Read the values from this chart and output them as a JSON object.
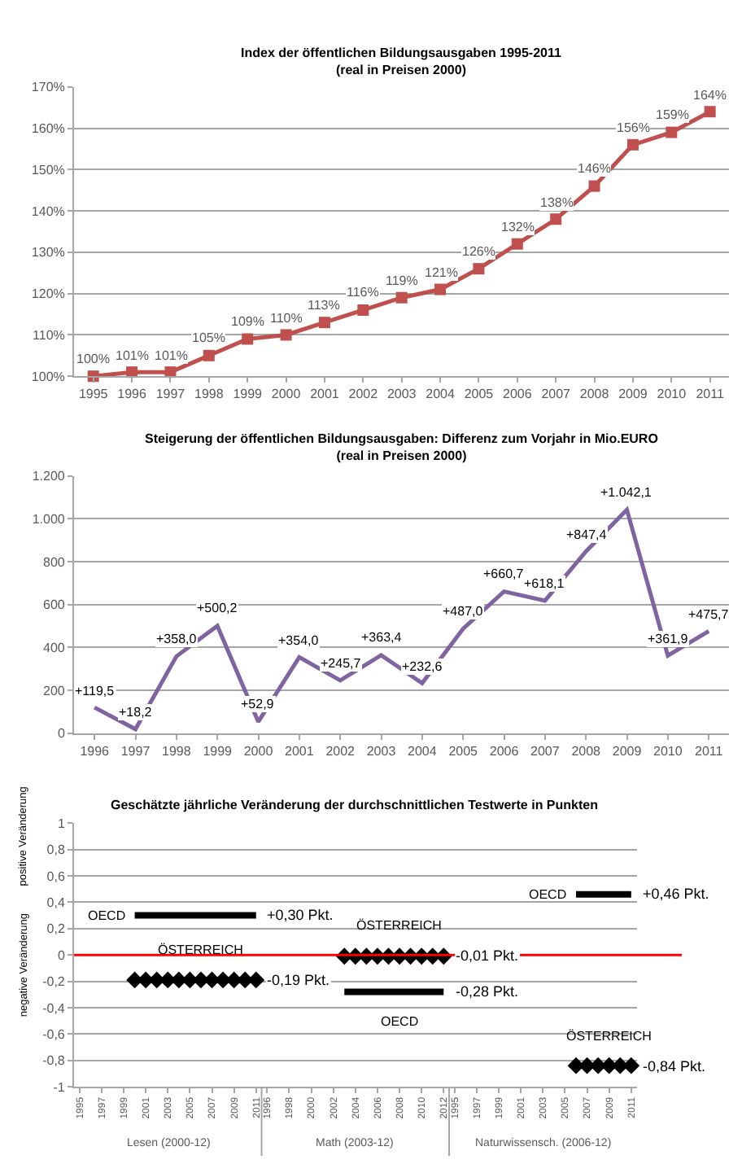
{
  "chart_data": [
    {
      "type": "line",
      "title": "Index der öffentlichen Bildungsausgaben 1995-2011",
      "subtitle": "(real in Preisen 2000)",
      "categories": [
        "1995",
        "1996",
        "1997",
        "1998",
        "1999",
        "2000",
        "2001",
        "2002",
        "2003",
        "2004",
        "2005",
        "2006",
        "2007",
        "2008",
        "2009",
        "2010",
        "2011"
      ],
      "series": [
        {
          "color": "#c0504d",
          "values": [
            100,
            101,
            101,
            105,
            109,
            110,
            113,
            116,
            119,
            121,
            126,
            132,
            138,
            146,
            156,
            159,
            164
          ],
          "value_labels": [
            "100%",
            "101%",
            "101%",
            "105%",
            "109%",
            "110%",
            "113%",
            "116%",
            "119%",
            "121%",
            "126%",
            "132%",
            "138%",
            "146%",
            "156%",
            "159%",
            "164%"
          ]
        }
      ],
      "ylim": [
        100,
        170
      ],
      "yticks": [
        {
          "value": 100,
          "label": "100%"
        },
        {
          "value": 110,
          "label": "110%"
        },
        {
          "value": 120,
          "label": "120%"
        },
        {
          "value": 130,
          "label": "130%"
        },
        {
          "value": 140,
          "label": "140%"
        },
        {
          "value": 150,
          "label": "150%"
        },
        {
          "value": 160,
          "label": "160%"
        },
        {
          "value": 170,
          "label": "170%"
        }
      ],
      "grid": "y",
      "marker": "square"
    },
    {
      "type": "line",
      "title": "Steigerung der öffentlichen Bildungsausgaben: Differenz zum Vorjahr in Mio.EURO",
      "subtitle": "(real in Preisen 2000)",
      "categories": [
        "1996",
        "1997",
        "1998",
        "1999",
        "2000",
        "2001",
        "2002",
        "2003",
        "2004",
        "2005",
        "2006",
        "2007",
        "2008",
        "2009",
        "2010",
        "2011"
      ],
      "series": [
        {
          "color": "#8064a2",
          "values": [
            119.5,
            18.2,
            358.0,
            500.2,
            52.9,
            354.0,
            245.7,
            363.4,
            232.6,
            487.0,
            660.7,
            618.1,
            847.4,
            1042.1,
            361.9,
            475.7
          ],
          "value_labels": [
            "+119,5",
            "+18,2",
            "+358,0",
            "+500,2",
            "+52,9",
            "+354,0",
            "+245,7",
            "+363,4",
            "+232,6",
            "+487,0",
            "+660,7",
            "+618,1",
            "+847,4",
            "+1.042,1",
            "+361,9",
            "+475,7"
          ]
        }
      ],
      "ylim": [
        0,
        1200
      ],
      "yticks": [
        0,
        200,
        400,
        600,
        800,
        {
          "value": 1000,
          "label": "1.000"
        },
        {
          "value": 1200,
          "label": "1.200"
        }
      ],
      "grid": "y",
      "marker": "none"
    },
    {
      "type": "line",
      "title": "Geschätzte jährliche Veränderung der durchschnittlichen Testwerte in Punkten",
      "ylabel": "positive Veränderung",
      "categories": [
        "1995",
        null,
        "1997",
        null,
        "1999",
        null,
        "2001",
        null,
        "2003",
        null,
        "2005",
        null,
        "2007",
        null,
        "2009",
        null,
        "2011",
        "1996",
        null,
        "1998",
        null,
        "2000",
        null,
        "2002",
        null,
        "2004",
        null,
        "2006",
        null,
        "2008",
        null,
        "2010",
        null,
        "2012",
        "1995",
        null,
        "1997",
        null,
        "1999",
        null,
        "2001",
        null,
        "2003",
        null,
        "2005",
        null,
        "2007",
        null,
        "2009",
        null,
        "2011"
      ],
      "series": [
        {
          "name": "OECD",
          "type": "line",
          "marker": "none",
          "color": "#000000",
          "values": [
            null,
            null,
            null,
            null,
            null,
            0.3,
            0.3,
            0.3,
            0.3,
            0.3,
            0.3,
            0.3,
            0.3,
            0.3,
            0.3,
            0.3,
            0.3,
            null,
            null,
            null,
            null,
            null,
            null,
            null,
            null,
            null,
            null,
            null,
            null,
            null,
            null,
            null,
            null,
            null,
            null,
            null,
            null,
            null,
            null,
            null,
            null,
            null,
            null,
            null,
            null,
            null,
            null,
            null,
            null,
            null,
            null
          ],
          "value_labels": [
            null,
            null,
            null,
            null,
            null,
            null,
            null,
            null,
            null,
            null,
            null,
            null,
            null,
            null,
            null,
            null,
            "+0,30 Pkt.",
            null,
            null,
            null,
            null,
            null,
            null,
            null,
            null,
            null,
            null,
            null,
            null,
            null,
            null,
            null,
            null,
            null,
            null,
            null,
            null,
            null,
            null,
            null,
            null,
            null,
            null,
            null,
            null,
            null,
            null,
            null,
            null,
            null,
            null
          ]
        },
        {
          "name": "ÖSTERREICH",
          "type": "scatter",
          "marker": "diamond",
          "color": "#000000",
          "values": [
            null,
            null,
            null,
            null,
            null,
            -0.19,
            -0.19,
            -0.19,
            -0.19,
            -0.19,
            -0.19,
            -0.19,
            -0.19,
            -0.19,
            -0.19,
            -0.19,
            -0.19,
            null,
            null,
            null,
            null,
            null,
            null,
            null,
            null,
            null,
            null,
            null,
            null,
            null,
            null,
            null,
            null,
            null,
            null,
            null,
            null,
            null,
            null,
            null,
            null,
            null,
            null,
            null,
            null,
            null,
            null,
            null,
            null,
            null,
            null
          ],
          "value_labels": [
            null,
            null,
            null,
            null,
            null,
            null,
            null,
            null,
            null,
            null,
            null,
            null,
            null,
            null,
            null,
            null,
            "-0,19 Pkt.",
            null,
            null,
            null,
            null,
            null,
            null,
            null,
            null,
            null,
            null,
            null,
            null,
            null,
            null,
            null,
            null,
            null,
            null,
            null,
            null,
            null,
            null,
            null,
            null,
            null,
            null,
            null,
            null,
            null,
            null,
            null,
            null,
            null,
            null
          ]
        },
        {
          "name": "ÖSTERREICH",
          "type": "scatter",
          "marker": "diamond",
          "color": "#000000",
          "values": [
            null,
            null,
            null,
            null,
            null,
            null,
            null,
            null,
            null,
            null,
            null,
            null,
            null,
            null,
            null,
            null,
            null,
            null,
            null,
            null,
            null,
            null,
            null,
            null,
            -0.01,
            -0.01,
            -0.01,
            -0.01,
            -0.01,
            -0.01,
            -0.01,
            -0.01,
            -0.01,
            -0.01,
            null,
            null,
            null,
            null,
            null,
            null,
            null,
            null,
            null,
            null,
            null,
            null,
            null,
            null,
            null,
            null,
            null
          ],
          "value_labels": [
            null,
            null,
            null,
            null,
            null,
            null,
            null,
            null,
            null,
            null,
            null,
            null,
            null,
            null,
            null,
            null,
            null,
            null,
            null,
            null,
            null,
            null,
            null,
            null,
            null,
            null,
            null,
            null,
            null,
            null,
            null,
            null,
            null,
            "-0,01 Pkt.",
            null,
            null,
            null,
            null,
            null,
            null,
            null,
            null,
            null,
            null,
            null,
            null,
            null,
            null,
            null,
            null,
            null
          ]
        },
        {
          "name": "OECD",
          "type": "line",
          "marker": "none",
          "color": "#000000",
          "values": [
            null,
            null,
            null,
            null,
            null,
            null,
            null,
            null,
            null,
            null,
            null,
            null,
            null,
            null,
            null,
            null,
            null,
            null,
            null,
            null,
            null,
            null,
            null,
            null,
            -0.28,
            -0.28,
            -0.28,
            -0.28,
            -0.28,
            -0.28,
            -0.28,
            -0.28,
            -0.28,
            -0.28,
            null,
            null,
            null,
            null,
            null,
            null,
            null,
            null,
            null,
            null,
            null,
            null,
            null,
            null,
            null,
            null,
            null
          ],
          "value_labels": [
            null,
            null,
            null,
            null,
            null,
            null,
            null,
            null,
            null,
            null,
            null,
            null,
            null,
            null,
            null,
            null,
            null,
            null,
            null,
            null,
            null,
            null,
            null,
            null,
            null,
            null,
            null,
            null,
            null,
            null,
            null,
            null,
            null,
            "-0,28 Pkt.",
            null,
            null,
            null,
            null,
            null,
            null,
            null,
            null,
            null,
            null,
            null,
            null,
            null,
            null,
            null,
            null,
            null
          ]
        },
        {
          "name": "OECD",
          "type": "line",
          "marker": "none",
          "color": "#000000",
          "values": [
            null,
            null,
            null,
            null,
            null,
            null,
            null,
            null,
            null,
            null,
            null,
            null,
            null,
            null,
            null,
            null,
            null,
            null,
            null,
            null,
            null,
            null,
            null,
            null,
            null,
            null,
            null,
            null,
            null,
            null,
            null,
            null,
            null,
            null,
            null,
            null,
            null,
            null,
            null,
            null,
            null,
            null,
            null,
            null,
            null,
            0.46,
            0.46,
            0.46,
            0.46,
            0.46,
            0.46
          ],
          "value_labels": [
            null,
            null,
            null,
            null,
            null,
            null,
            null,
            null,
            null,
            null,
            null,
            null,
            null,
            null,
            null,
            null,
            null,
            null,
            null,
            null,
            null,
            null,
            null,
            null,
            null,
            null,
            null,
            null,
            null,
            null,
            null,
            null,
            null,
            null,
            null,
            null,
            null,
            null,
            null,
            null,
            null,
            null,
            null,
            null,
            null,
            null,
            null,
            null,
            null,
            null,
            "+0,46 Pkt."
          ]
        },
        {
          "name": "ÖSTERREICH",
          "type": "scatter",
          "marker": "diamond",
          "color": "#000000",
          "values": [
            null,
            null,
            null,
            null,
            null,
            null,
            null,
            null,
            null,
            null,
            null,
            null,
            null,
            null,
            null,
            null,
            null,
            null,
            null,
            null,
            null,
            null,
            null,
            null,
            null,
            null,
            null,
            null,
            null,
            null,
            null,
            null,
            null,
            null,
            null,
            null,
            null,
            null,
            null,
            null,
            null,
            null,
            null,
            null,
            null,
            -0.84,
            -0.84,
            -0.84,
            -0.84,
            -0.84,
            -0.84
          ],
          "value_labels": [
            null,
            null,
            null,
            null,
            null,
            null,
            null,
            null,
            null,
            null,
            null,
            null,
            null,
            null,
            null,
            null,
            null,
            null,
            null,
            null,
            null,
            null,
            null,
            null,
            null,
            null,
            null,
            null,
            null,
            null,
            null,
            null,
            null,
            null,
            null,
            null,
            null,
            null,
            null,
            null,
            null,
            null,
            null,
            null,
            null,
            null,
            null,
            null,
            null,
            null,
            "-0,84 Pkt."
          ]
        }
      ],
      "ylim": [
        -1,
        1
      ],
      "yticks": [
        {
          "value": -1,
          "label": "-1"
        },
        {
          "value": -0.8,
          "label": "-0,8"
        },
        {
          "value": -0.6,
          "label": "-0,6"
        },
        {
          "value": -0.4,
          "label": "-0,4"
        },
        {
          "value": -0.2,
          "label": "-0,2"
        },
        0,
        {
          "value": 0.2,
          "label": "0,2"
        },
        {
          "value": 0.4,
          "label": "0,4"
        },
        {
          "value": 0.6,
          "label": "0,6"
        },
        {
          "value": 0.8,
          "label": "0,8"
        },
        1
      ],
      "ref_lines": [
        {
          "axis": "y",
          "value": 0,
          "color": "#ff0000"
        }
      ],
      "annotations": [
        "negative Veränderung",
        "Lesen (2000-12)",
        "Math (2003-12)",
        "Naturwissensch. (2006-12)"
      ],
      "grid": "y"
    }
  ]
}
